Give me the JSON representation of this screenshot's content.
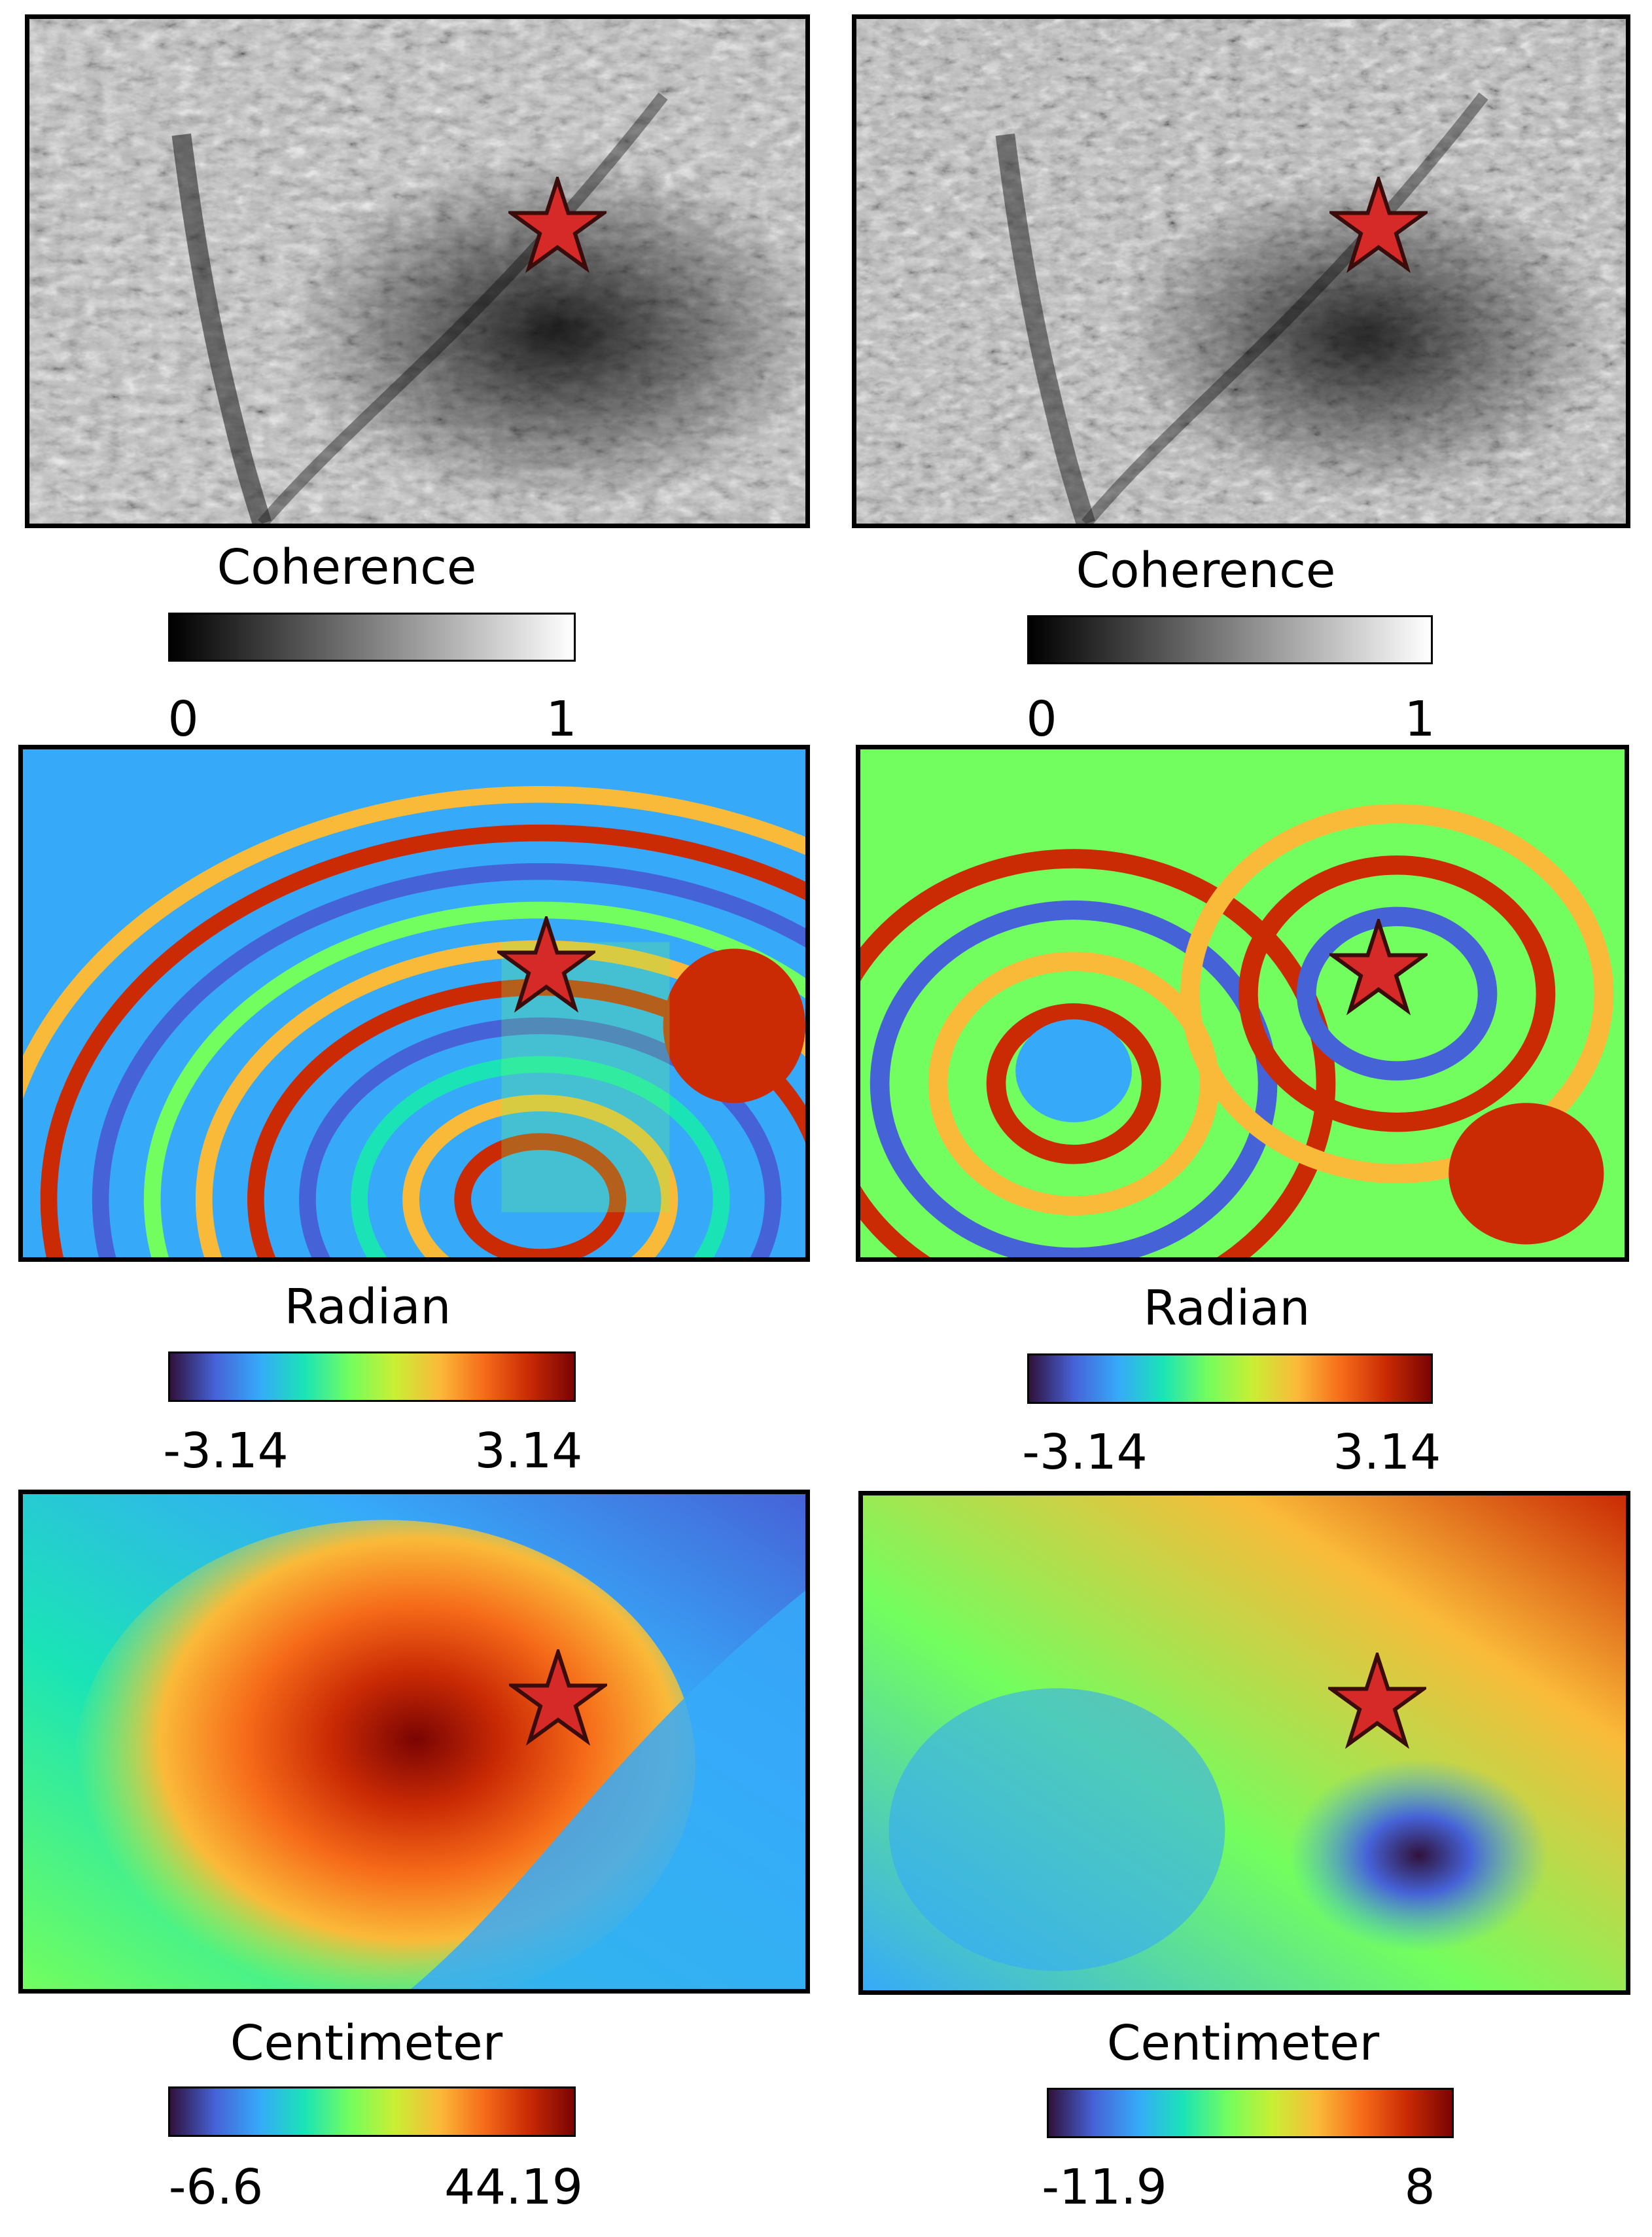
{
  "figure": {
    "panels": [
      {
        "id": "coherence-left",
        "kind": "coherence",
        "title": "Coherence",
        "min": "0",
        "max": "1"
      },
      {
        "id": "coherence-right",
        "kind": "coherence",
        "title": "Coherence",
        "min": "0",
        "max": "1"
      },
      {
        "id": "phase-left",
        "kind": "phase",
        "title": "Radian",
        "min": "-3.14",
        "max": "3.14"
      },
      {
        "id": "phase-right",
        "kind": "phase",
        "title": "Radian",
        "min": "-3.14",
        "max": "3.14"
      },
      {
        "id": "disp-left",
        "kind": "displacement",
        "title": "Centimeter",
        "min": "-6.6",
        "max": "44.19"
      },
      {
        "id": "disp-right",
        "kind": "displacement",
        "title": "Centimeter",
        "min": "-11.9",
        "max": "8"
      }
    ],
    "marker": {
      "icon": "star-icon",
      "fill": "#d62a28",
      "stroke": "#3a0c0c"
    },
    "colormaps": {
      "gray": [
        "#000000",
        "#ffffff"
      ],
      "turbo": [
        "#30123b",
        "#4662d7",
        "#36aaf9",
        "#1ae4b6",
        "#72fe5e",
        "#c8ef34",
        "#faba39",
        "#f66b19",
        "#ca2a04",
        "#7a0403"
      ]
    }
  }
}
